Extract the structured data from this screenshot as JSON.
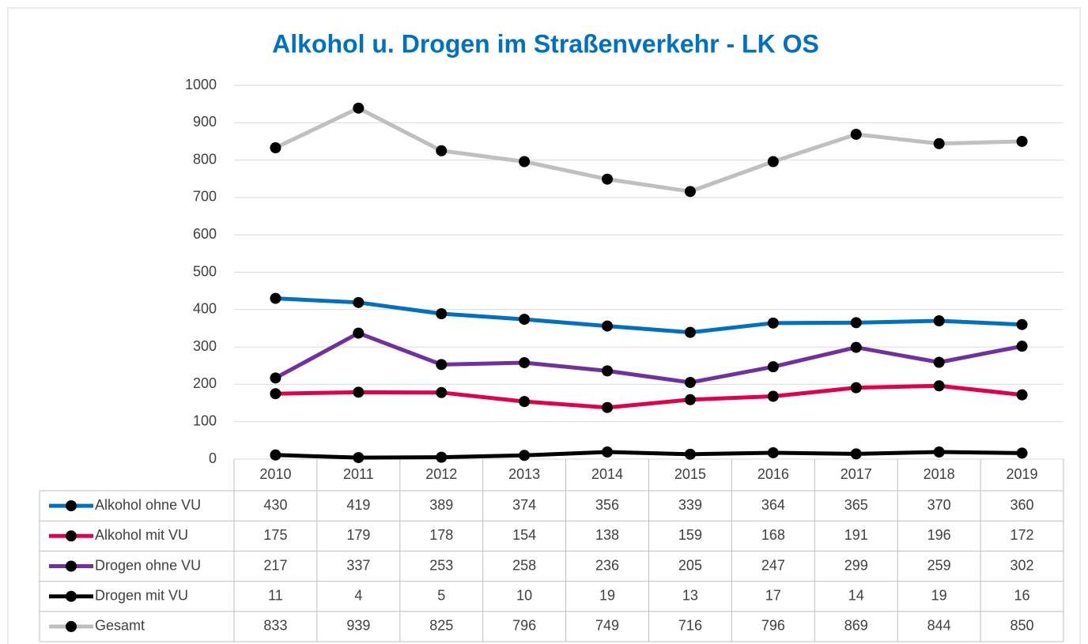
{
  "chart_data": {
    "type": "line",
    "title": "Alkohol u. Drogen im Straßenverkehr - LK OS",
    "categories": [
      "2010",
      "2011",
      "2012",
      "2013",
      "2014",
      "2015",
      "2016",
      "2017",
      "2018",
      "2019"
    ],
    "series": [
      {
        "name": "Alkohol ohne VU",
        "color": "#0070c0",
        "values": [
          430,
          419,
          389,
          374,
          356,
          339,
          364,
          365,
          370,
          360
        ]
      },
      {
        "name": "Alkohol mit VU",
        "color": "#e0004d",
        "values": [
          175,
          179,
          178,
          154,
          138,
          159,
          168,
          191,
          196,
          172
        ]
      },
      {
        "name": "Drogen ohne VU",
        "color": "#7030a0",
        "values": [
          217,
          337,
          253,
          258,
          236,
          205,
          247,
          299,
          259,
          302
        ]
      },
      {
        "name": "Drogen mit VU",
        "color": "#000000",
        "values": [
          11,
          4,
          5,
          10,
          19,
          13,
          17,
          14,
          19,
          16
        ]
      },
      {
        "name": "Gesamt",
        "color": "#bfbfbf",
        "values": [
          833,
          939,
          825,
          796,
          749,
          716,
          796,
          869,
          844,
          850
        ]
      }
    ],
    "ylim": [
      0,
      1000
    ],
    "yticks": [
      0,
      100,
      200,
      300,
      400,
      500,
      600,
      700,
      800,
      900,
      1000
    ],
    "grid": true
  }
}
